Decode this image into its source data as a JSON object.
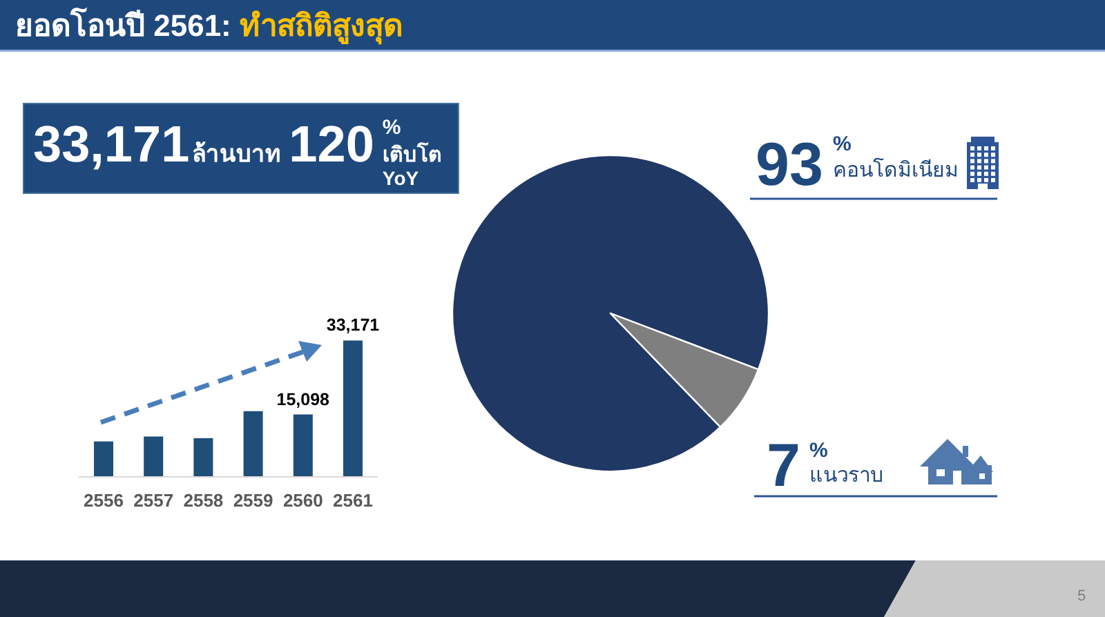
{
  "chart_data": [
    {
      "type": "other",
      "title": "ยอดโอนปี 2561:",
      "subtitle": "ทำสถิติสูงสุด",
      "annotations": [
        "33,171",
        "ล้านบาท",
        "120",
        "%",
        "เติบโต",
        "YoY",
        "5"
      ]
    },
    {
      "type": "bar",
      "categories": [
        "2556",
        "2557",
        "2558",
        "2559",
        "2560",
        "2561"
      ],
      "values": [
        8500,
        9700,
        9300,
        15900,
        15098,
        33171
      ],
      "value_labels": [
        null,
        null,
        null,
        null,
        "15,098",
        "33,171"
      ],
      "color": "#1f4e79"
    },
    {
      "type": "pie",
      "categories": [
        "คอนโดมิเนียม",
        "แนวราบ"
      ],
      "values": [
        93,
        7
      ],
      "colors": [
        "#203864",
        "#7f7f7f"
      ],
      "value_labels": [
        "93%",
        "7%"
      ]
    }
  ]
}
